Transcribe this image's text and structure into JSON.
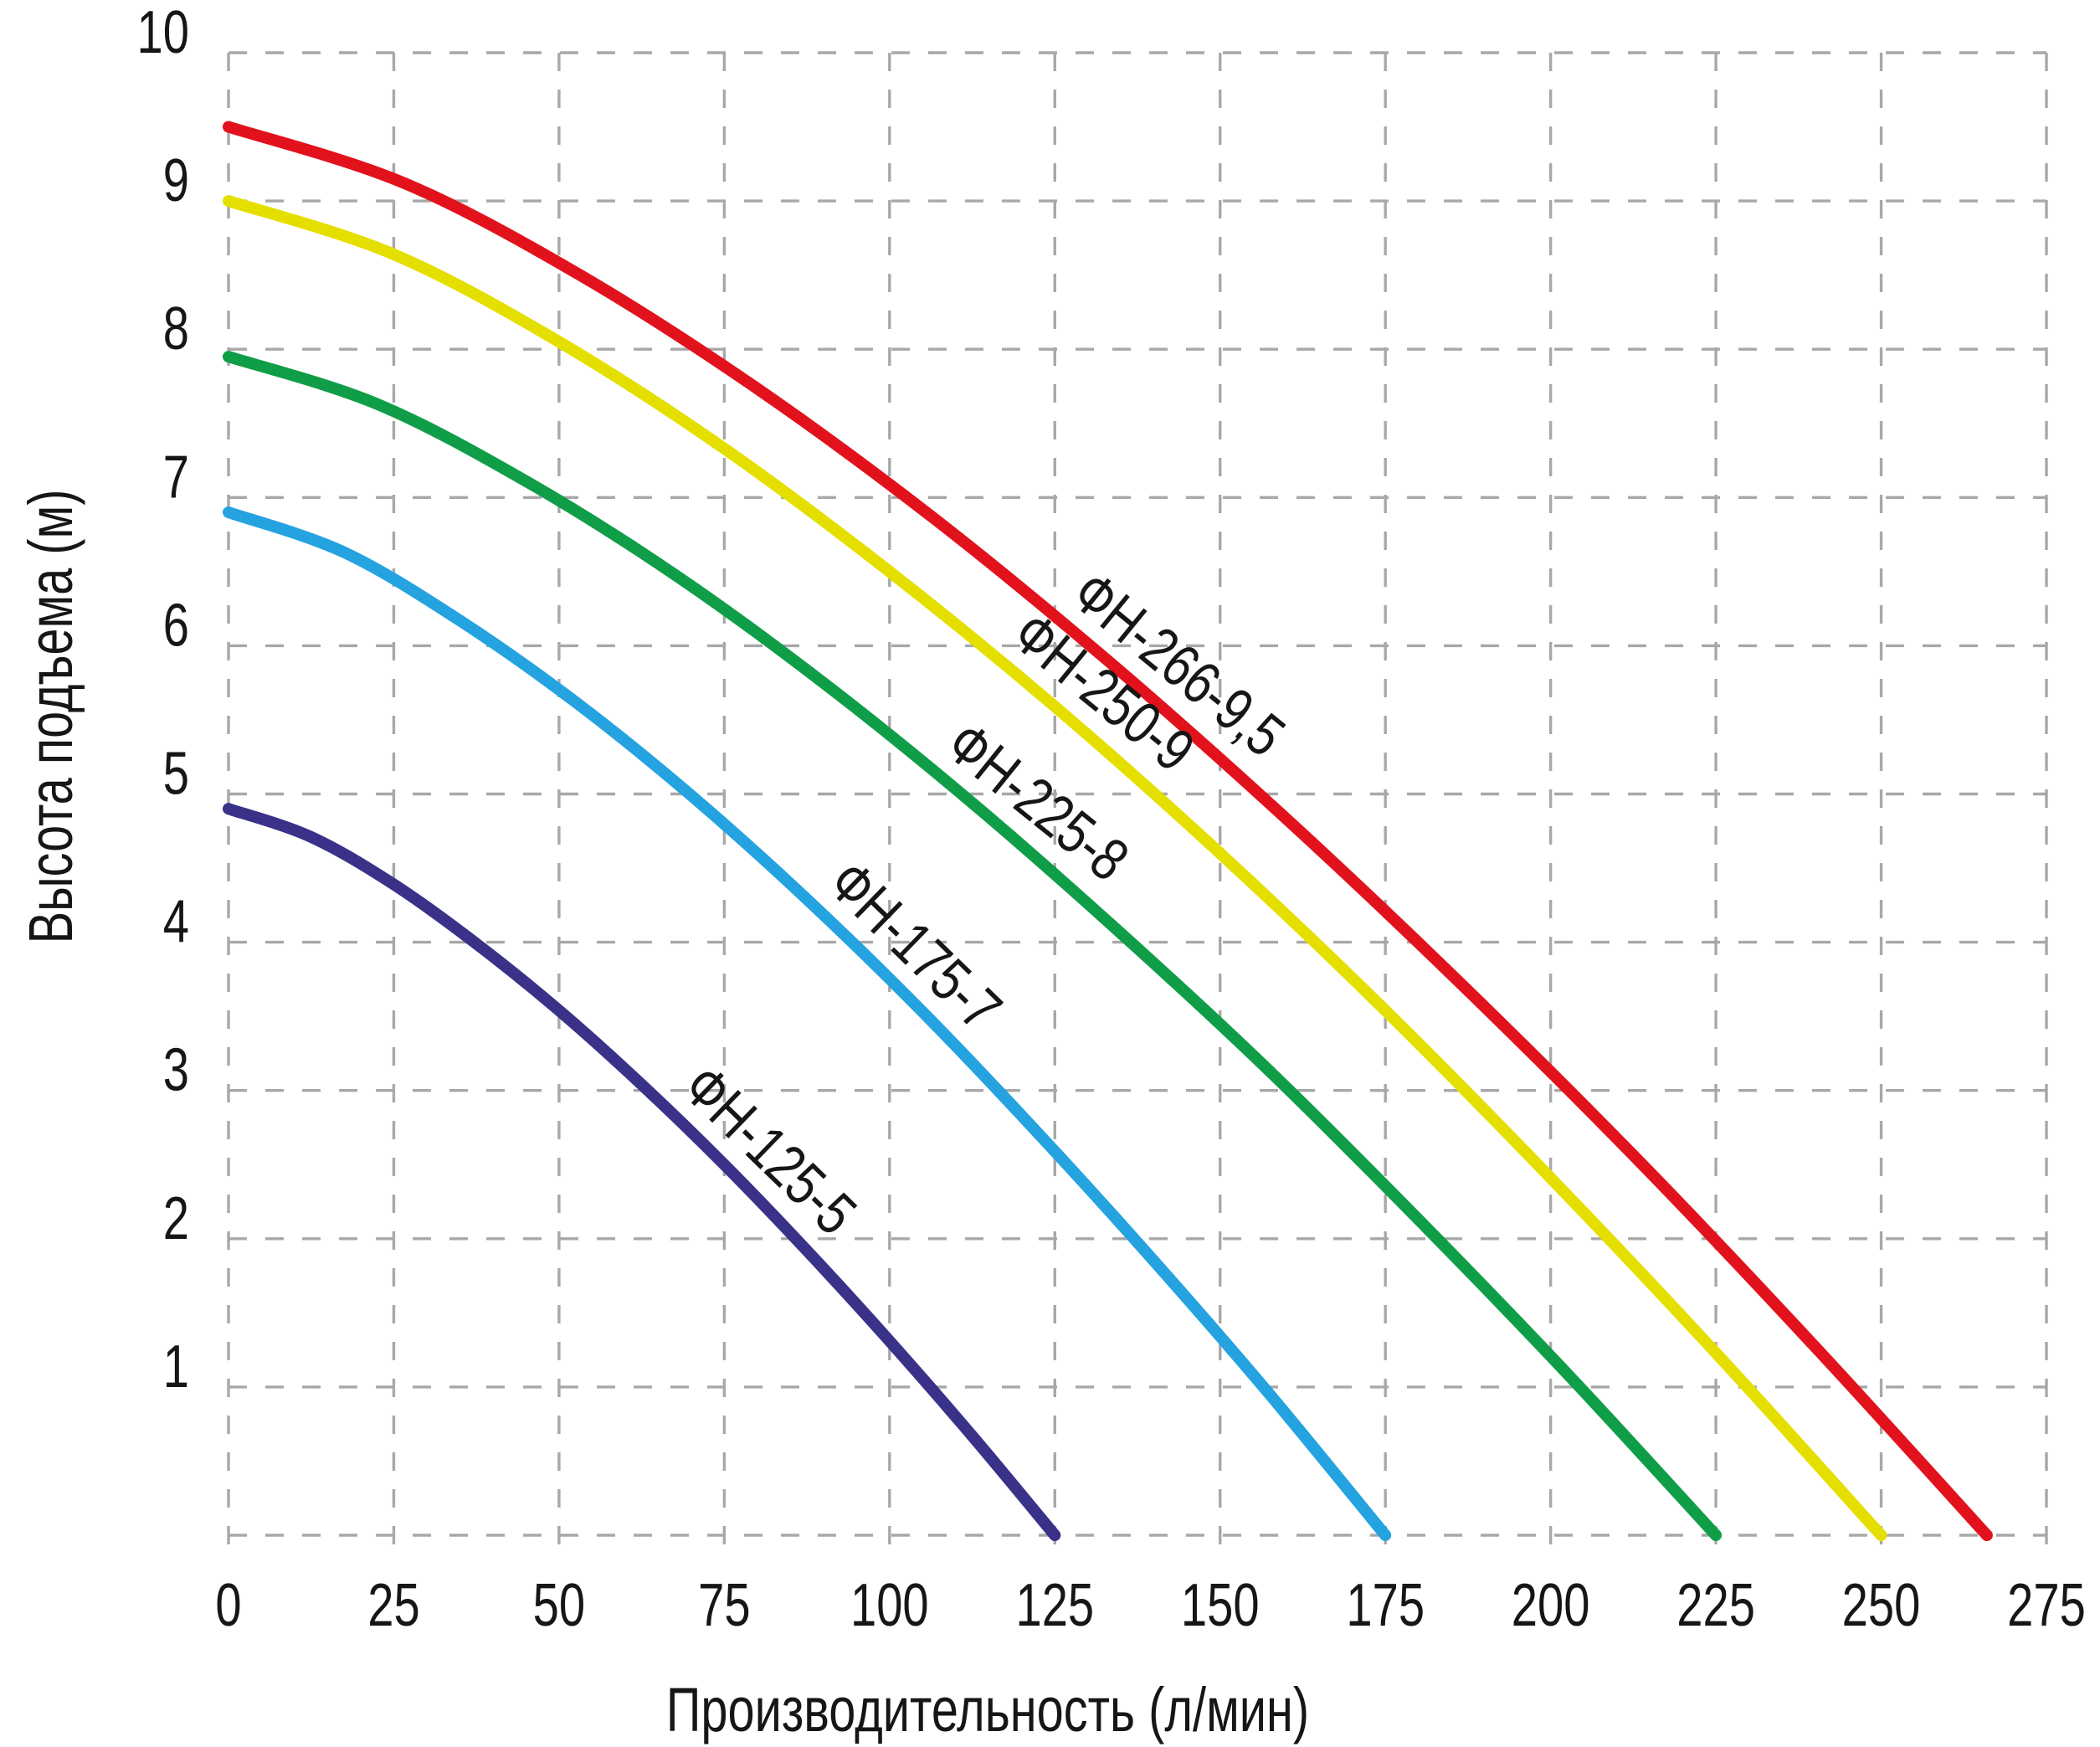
{
  "figure": {
    "background": "#ffffff",
    "grid_color": "#a8a8a8",
    "text_color": "#161616"
  },
  "chart_data": {
    "type": "line",
    "title": "",
    "xlabel": "Производительность (л/мин)",
    "ylabel": "Высота подъема (м)",
    "xlim": [
      0,
      275
    ],
    "ylim": [
      0,
      10
    ],
    "grid": "dashed",
    "grid_color": "#a8a8a8",
    "legend_position": "inline-rotated-curve-labels",
    "x_ticks": [
      0,
      25,
      50,
      75,
      100,
      125,
      150,
      175,
      200,
      225,
      250,
      275
    ],
    "y_ticks": [
      1,
      2,
      3,
      4,
      5,
      6,
      7,
      8,
      9,
      10
    ],
    "y_gridlines": [
      0,
      1,
      2,
      3,
      4,
      5,
      6,
      7,
      8,
      9,
      10
    ],
    "series": [
      {
        "name": "ФН-125-5",
        "color": "#3a3189",
        "max_head_m": 4.9,
        "max_flow_l_min": 125,
        "label_q": 66,
        "points": [
          [
            0,
            4.9
          ],
          [
            12.5,
            4.71
          ],
          [
            25,
            4.39
          ],
          [
            37.5,
            3.99
          ],
          [
            50,
            3.54
          ],
          [
            62.5,
            3.04
          ],
          [
            75,
            2.5
          ],
          [
            87.5,
            1.92
          ],
          [
            100,
            1.31
          ],
          [
            112.5,
            0.67
          ],
          [
            125,
            0
          ]
        ]
      },
      {
        "name": "ФН-175-7",
        "color": "#24a3e0",
        "max_head_m": 6.9,
        "max_flow_l_min": 175,
        "label_q": 88,
        "points": [
          [
            0,
            6.9
          ],
          [
            17.5,
            6.63
          ],
          [
            35,
            6.17
          ],
          [
            52.5,
            5.62
          ],
          [
            70,
            4.99
          ],
          [
            87.5,
            4.29
          ],
          [
            105,
            3.53
          ],
          [
            122.5,
            2.71
          ],
          [
            140,
            1.85
          ],
          [
            157.5,
            0.95
          ],
          [
            175,
            0
          ]
        ]
      },
      {
        "name": "ФН-225-8",
        "color": "#0f9e47",
        "max_head_m": 7.95,
        "max_flow_l_min": 225,
        "label_q": 106,
        "points": [
          [
            0,
            7.95
          ],
          [
            22.5,
            7.63
          ],
          [
            45,
            7.11
          ],
          [
            67.5,
            6.48
          ],
          [
            90,
            5.75
          ],
          [
            112.5,
            4.94
          ],
          [
            135,
            4.06
          ],
          [
            157.5,
            3.13
          ],
          [
            180,
            2.13
          ],
          [
            202.5,
            1.09
          ],
          [
            225,
            0
          ]
        ]
      },
      {
        "name": "ФН-250-9",
        "color": "#e5df00",
        "max_head_m": 9.0,
        "max_flow_l_min": 250,
        "label_q": 116,
        "points": [
          [
            0,
            9.0
          ],
          [
            25,
            8.64
          ],
          [
            50,
            8.05
          ],
          [
            75,
            7.33
          ],
          [
            100,
            6.5
          ],
          [
            125,
            5.59
          ],
          [
            150,
            4.6
          ],
          [
            175,
            3.54
          ],
          [
            200,
            2.41
          ],
          [
            225,
            1.23
          ],
          [
            250,
            0
          ]
        ]
      },
      {
        "name": "ФН-266-9,5",
        "color": "#e2121d",
        "max_head_m": 9.5,
        "max_flow_l_min": 266,
        "label_q": 125,
        "points": [
          [
            0,
            9.5
          ],
          [
            26.6,
            9.12
          ],
          [
            53.2,
            8.5
          ],
          [
            79.8,
            7.74
          ],
          [
            106.4,
            6.87
          ],
          [
            133,
            5.9
          ],
          [
            159.6,
            4.85
          ],
          [
            186.2,
            3.73
          ],
          [
            212.8,
            2.55
          ],
          [
            239.4,
            1.3
          ],
          [
            266,
            0
          ]
        ]
      }
    ]
  }
}
